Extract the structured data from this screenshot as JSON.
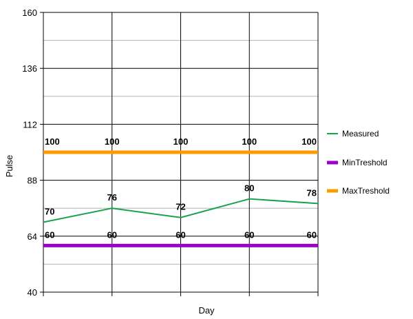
{
  "chart_data": {
    "type": "line",
    "xlabel": "Day",
    "ylabel": "Pulse",
    "ylim": [
      40,
      160
    ],
    "y_ticks": [
      40,
      64,
      88,
      112,
      136,
      160
    ],
    "x_count": 5,
    "grid": true,
    "legend_position": "right",
    "series": [
      {
        "name": "Measured",
        "color": "#16a34a",
        "values": [
          70,
          76,
          72,
          80,
          78
        ]
      },
      {
        "name": "MinTreshold",
        "color": "#9900cc",
        "values": [
          60,
          60,
          60,
          60,
          60
        ]
      },
      {
        "name": "MaxTreshold",
        "color": "#ff9900",
        "values": [
          100,
          100,
          100,
          100,
          100
        ]
      }
    ]
  }
}
